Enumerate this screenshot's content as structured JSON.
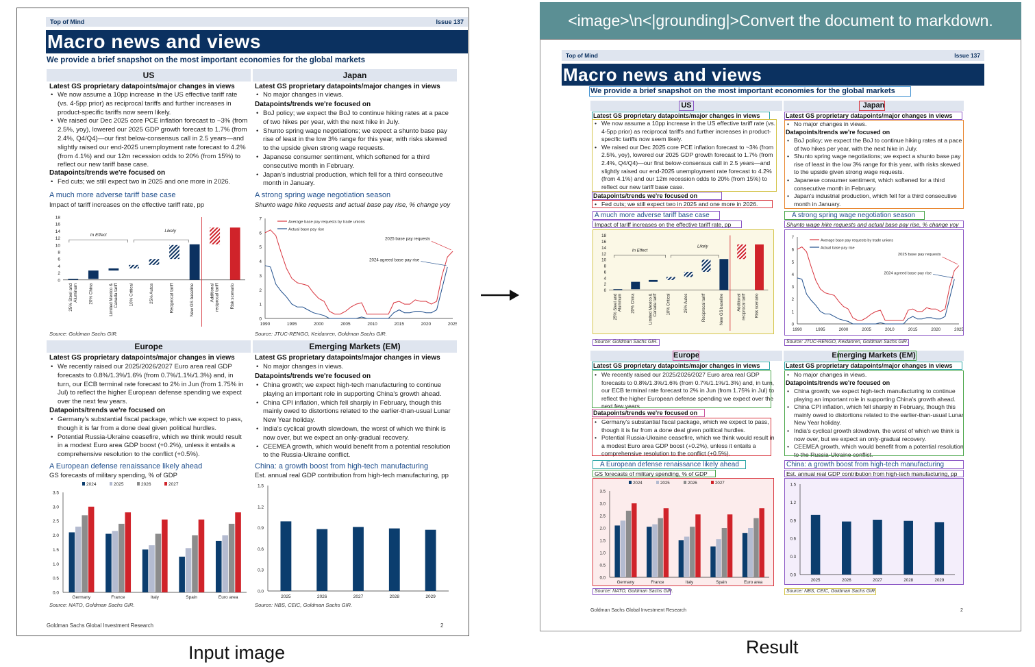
{
  "prompt": "<image>\\n<|grounding|>Convert the document to markdown.",
  "captions": {
    "input": "Input image",
    "result": "Result"
  },
  "doc": {
    "top_left": "Top of Mind",
    "issue": "Issue 137",
    "title": "Macro news and views",
    "subtitle": "We provide a brief snapshot on the most important economies for the global markets",
    "footer": "Goldman Sachs Global Investment Research",
    "page": "2",
    "us": {
      "header": "US",
      "h1": "Latest GS proprietary datapoints/major changes in views",
      "b1": "We now assume a 10pp increase in the US effective tariff rate (vs. 4-5pp prior) as reciprocal tariffs and further increases in product-specific tariffs now seem likely.",
      "b2": "We raised our Dec 2025 core PCE inflation forecast to ~3% (from 2.5%, yoy), lowered our 2025 GDP growth forecast to 1.7% (from 2.4%, Q4/Q4)—our first below-consensus call in 2.5 years—and slightly raised our end-2025 unemployment rate forecast to 4.2% (from 4.1%) and our 12m recession odds to 20% (from 15%) to reflect our new tariff base case.",
      "h2": "Datapoints/trends we're focused on",
      "b3": "Fed cuts; we still expect two in 2025 and one more in 2026."
    },
    "japan": {
      "header": "Japan",
      "h1": "Latest GS proprietary datapoints/major changes in views",
      "b1": "No major changes in views.",
      "h2": "Datapoints/trends we're focused on",
      "b2": "BoJ policy; we expect the BoJ to continue hiking rates at a pace of two hikes per year, with the next hike in July.",
      "b3": "Shunto spring wage negotiations; we expect a shunto base pay rise of least in the low 3% range for this year, with risks skewed to the upside given strong wage requests.",
      "b4": "Japanese consumer sentiment, which softened for a third consecutive month in February.",
      "b5": "Japan's industrial production, which fell for a third consecutive month in January."
    },
    "europe": {
      "header": "Europe",
      "h1": "Latest GS proprietary datapoints/major changes in views",
      "b1": "We recently raised our 2025/2026/2027 Euro area real GDP forecasts to 0.8%/1.3%/1.6% (from 0.7%/1.1%/1.3%) and, in turn, our ECB terminal rate forecast to 2% in Jun (from 1.75% in Jul) to reflect the higher European defense spending we expect over the next few years.",
      "h2": "Datapoints/trends we're focused on",
      "b2": "Germany's substantial fiscal package, which we expect to pass, though it is far from a done deal given political hurdles.",
      "b3": "Potential Russia-Ukraine ceasefire, which we think would result in a modest Euro area GDP boost (+0.2%), unless it entails a comprehensive resolution to the conflict (+0.5%)."
    },
    "em": {
      "header": "Emerging Markets (EM)",
      "h1": "Latest GS proprietary datapoints/major changes in views",
      "b1": "No major changes in views.",
      "h2": "Datapoints/trends we're focused on",
      "b2": "China growth; we expect high-tech manufacturing to continue playing an important role in supporting China's growth ahead.",
      "b3": "China CPI inflation, which fell sharply in February, though this mainly owed to distortions related to the earlier-than-usual Lunar New Year holiday.",
      "b4": "India's cyclical growth slowdown, the worst of which we think is now over, but we expect an only-gradual recovery.",
      "b5": "CEEMEA growth, which would benefit from a potential resolution to the Russia-Ukraine conflict."
    }
  },
  "chart_data": [
    {
      "type": "bar",
      "title": "A much more adverse tariff base case",
      "subtitle": "Impact of tariff increases on the effective tariff rate, pp",
      "categories": [
        "25% Steel and Aluminum",
        "20% China",
        "Limited Mexico & Canada tariff",
        "10% Critical",
        "25% Autos",
        "Reciprocal tariff",
        "New GS baseline",
        "Additional reciprocal tariff",
        "Risk scenario"
      ],
      "values": [
        0.3,
        2.7,
        3.3,
        4.3,
        6.0,
        10.0,
        10.2,
        15.0,
        15.0
      ],
      "ylim": [
        0,
        18
      ],
      "ticks": [
        0,
        2,
        4,
        6,
        8,
        10,
        12,
        14,
        16,
        18
      ],
      "annotations": [
        "In Effect",
        "Likely"
      ],
      "source": "Source: Goldman Sachs GIR."
    },
    {
      "type": "line",
      "title": "A strong spring wage negotiation season",
      "subtitle": "Shunto wage hike requests and actual base pay rise, % change yoy",
      "series": [
        {
          "name": "Average base pay requests by trade unions",
          "color": "#d8343d",
          "x": [
            1990,
            1991,
            1992,
            1993,
            1994,
            1995,
            1996,
            1997,
            1998,
            1999,
            2000,
            2001,
            2002,
            2003,
            2004,
            2005,
            2006,
            2007,
            2008,
            2009,
            2010,
            2011,
            2012,
            2013,
            2014,
            2015,
            2016,
            2017,
            2018,
            2019,
            2020,
            2021,
            2022,
            2023,
            2024,
            2025
          ],
          "values": [
            6.0,
            6.2,
            5.8,
            4.6,
            3.5,
            2.8,
            2.5,
            2.4,
            2.3,
            1.8,
            1.4,
            1.2,
            0.5,
            0.3,
            0.3,
            0.5,
            0.8,
            1.0,
            1.1,
            0.3,
            0.3,
            0.3,
            0.3,
            0.3,
            1.1,
            1.2,
            1.0,
            1.0,
            1.3,
            1.2,
            1.2,
            1.0,
            1.2,
            3.0,
            4.3,
            4.7
          ]
        },
        {
          "name": "Actual base pay rise",
          "color": "#1f4e8c",
          "x": [
            1990,
            1991,
            1992,
            1993,
            1994,
            1995,
            1996,
            1997,
            1998,
            1999,
            2000,
            2001,
            2002,
            2003,
            2004,
            2005,
            2006,
            2007,
            2008,
            2009,
            2010,
            2011,
            2012,
            2013,
            2014,
            2015,
            2016,
            2017,
            2018,
            2019,
            2020,
            2021,
            2022,
            2023,
            2024
          ],
          "values": [
            3.7,
            3.6,
            2.4,
            1.9,
            1.5,
            1.0,
            0.8,
            0.8,
            0.6,
            0.4,
            0.3,
            0.2,
            0.0,
            0.0,
            0.0,
            0.0,
            0.0,
            0.0,
            0.1,
            0.0,
            0.0,
            0.0,
            0.0,
            0.0,
            0.4,
            0.6,
            0.4,
            0.4,
            0.5,
            0.5,
            0.4,
            0.4,
            0.6,
            2.1,
            3.6
          ]
        }
      ],
      "xlim": [
        1990,
        2025
      ],
      "xticks": [
        1990,
        1995,
        2000,
        2005,
        2010,
        2015,
        2020,
        2025
      ],
      "ylim": [
        0,
        7
      ],
      "ticks": [
        0,
        1,
        2,
        3,
        4,
        5,
        6,
        7
      ],
      "annotations": [
        "2025 base pay requests",
        "2024 agreed base pay rise"
      ],
      "source": "Source: JTUC-RENGO, Keidanren, Goldman Sachs GIR."
    },
    {
      "type": "bar",
      "title": "A European defense renaissance likely ahead",
      "subtitle": "GS forecasts of military spending, % of GDP",
      "categories": [
        "Germany",
        "France",
        "Italy",
        "Spain",
        "Euro area"
      ],
      "series": [
        {
          "name": "2024",
          "color": "#0b3d6e",
          "values": [
            2.1,
            2.05,
            1.5,
            1.25,
            1.8
          ]
        },
        {
          "name": "2025",
          "color": "#b4bbd0",
          "values": [
            2.3,
            2.15,
            1.65,
            1.55,
            2.0
          ]
        },
        {
          "name": "2026",
          "color": "#8c8c8c",
          "values": [
            2.7,
            2.4,
            2.05,
            2.0,
            2.4
          ]
        },
        {
          "name": "2027",
          "color": "#d0232a",
          "values": [
            3.0,
            2.8,
            2.55,
            2.55,
            2.8
          ]
        }
      ],
      "ylim": [
        0,
        3.5
      ],
      "ticks": [
        0.0,
        0.5,
        1.0,
        1.5,
        2.0,
        2.5,
        3.0,
        3.5
      ],
      "source": "Source: NATO, Goldman Sachs GIR."
    },
    {
      "type": "bar",
      "title": "China: a growth boost from high-tech manufacturing",
      "subtitle": "Est. annual real GDP contribution from high-tech manufacturing, pp",
      "categories": [
        "2025",
        "2026",
        "2027",
        "2028",
        "2029"
      ],
      "values": [
        0.99,
        0.88,
        0.91,
        0.89,
        0.87
      ],
      "ylim": [
        0,
        1.5
      ],
      "ticks": [
        0.0,
        0.3,
        0.6,
        0.9,
        1.2,
        1.5
      ],
      "source": "Source: NBS, CEIC, Goldman Sachs GIR."
    }
  ],
  "overlay_tags": {
    "sub_title": "sub_title",
    "image": "image",
    "image_caption": "image_caption",
    "title": "title"
  }
}
